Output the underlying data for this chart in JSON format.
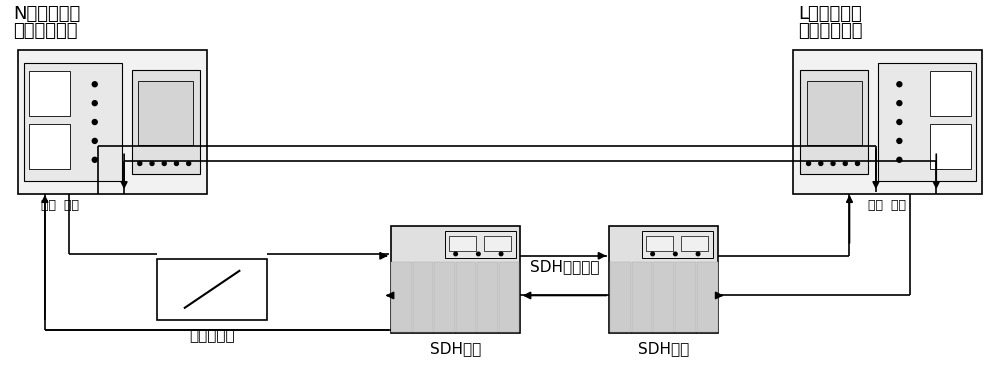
{
  "bg_color": "#ffffff",
  "line_color": "#000000",
  "n_label_line1": "N侧光纤差动",
  "n_label_line2": "线路保护装置",
  "l_label_line1": "L侧光纤差动",
  "l_label_line2": "线路保护装置",
  "n_ports_label": "收发  发收",
  "l_ports_label": "发收  收发",
  "switch_label": "通道开断点",
  "sdh_left_label": "SDH设备",
  "sdh_right_label": "SDH设备",
  "sdh_channel_label": "SDH复用通道",
  "font_size_large": 13,
  "font_size_medium": 11,
  "font_size_small": 9
}
